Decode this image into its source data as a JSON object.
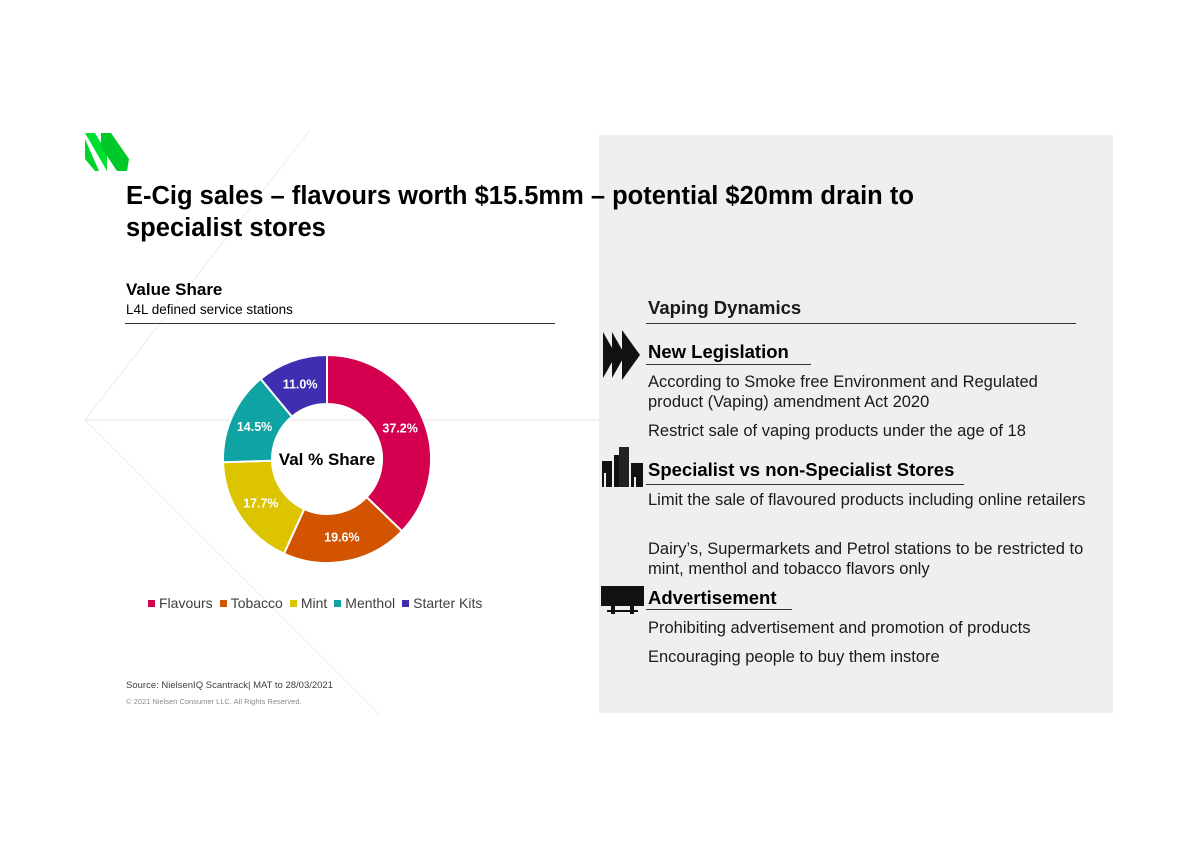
{
  "title": "E-Cig sales – flavours worth $15.5mm – potential $20mm drain to specialist stores",
  "left": {
    "heading": "Value Share",
    "subheading": "L4L defined service stations",
    "source": "Source: NielsenIQ Scantrack| MAT to 28/03/2021",
    "copyright": "© 2021 Nielsen Consumer LLC. All Rights Reserved."
  },
  "chart_data": {
    "type": "pie",
    "center_label": "Val % Share",
    "categories": [
      "Flavours",
      "Tobacco",
      "Mint",
      "Menthol",
      "Starter Kits"
    ],
    "values": [
      37.2,
      19.6,
      17.7,
      14.5,
      11.0
    ],
    "data_labels": [
      "37.2%",
      "19.6%",
      "17.7%",
      "14.5%",
      "11.0%"
    ],
    "colors": [
      "#d4004f",
      "#d25400",
      "#dcc400",
      "#0fa3a3",
      "#3f2fb0"
    ],
    "legend_position": "bottom"
  },
  "right": {
    "heading": "Vaping Dynamics",
    "sections": [
      {
        "icon": "forward-arrows-icon",
        "title": "New Legislation",
        "bullets": [
          "According to Smoke free Environment and Regulated product (Vaping) amendment Act 2020",
          "Restrict sale of vaping products under the age of 18"
        ]
      },
      {
        "icon": "buildings-icon",
        "title": "Specialist vs non-Specialist Stores",
        "bullets": [
          "Limit the sale of flavoured products including online retailers",
          "Dairy’s, Supermarkets and Petrol stations to be restricted to mint, menthol and tobacco flavors only"
        ]
      },
      {
        "icon": "billboard-icon",
        "title": "Advertisement",
        "bullets": [
          "Prohibiting advertisement and promotion of products",
          "Encouraging people to buy them instore"
        ]
      }
    ]
  }
}
